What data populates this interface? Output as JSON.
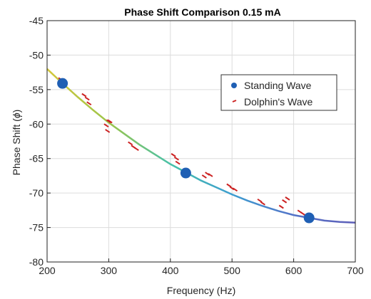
{
  "chart_data": {
    "type": "scatter",
    "title": "Phase Shift Comparison 0.15 mA",
    "xlabel": "Frequency (Hz)",
    "ylabel": "Phase Shift (",
    "ylabel_symbol": "ϕ",
    "ylabel_close": ")",
    "xlim": [
      200,
      700
    ],
    "ylim": [
      -80,
      -45
    ],
    "xticks": [
      200,
      300,
      400,
      500,
      600,
      700
    ],
    "yticks": [
      -45,
      -50,
      -55,
      -60,
      -65,
      -70,
      -75,
      -80
    ],
    "xtick_labels": [
      "200",
      "300",
      "400",
      "500",
      "600",
      "700"
    ],
    "ytick_labels": [
      "-45",
      "-50",
      "-55",
      "-60",
      "-65",
      "-70",
      "-75",
      "-80"
    ],
    "grid": true,
    "legend_position": "top-right",
    "series": [
      {
        "name": "Standing Wave",
        "marker": "circle",
        "color": "#1f5fb4",
        "x": [
          225,
          425,
          625
        ],
        "y": [
          -54.1,
          -67.1,
          -73.6
        ]
      },
      {
        "name": "Dolphin's Wave",
        "marker": "dash",
        "color": "#cc2222",
        "x": [
          222,
          226,
          260,
          265,
          268,
          296,
          298,
          300,
          302,
          335,
          340,
          345,
          405,
          410,
          412,
          455,
          460,
          465,
          495,
          500,
          505,
          545,
          550,
          580,
          585,
          590,
          610,
          615,
          620,
          625
        ],
        "y": [
          -53.5,
          -54.5,
          -55.8,
          -56.3,
          -57.0,
          -60.2,
          -61.0,
          -59.6,
          -59.6,
          -62.8,
          -63.3,
          -63.6,
          -64.5,
          -65.0,
          -65.6,
          -67.6,
          -67.2,
          -67.4,
          -68.9,
          -69.3,
          -69.5,
          -71.1,
          -71.5,
          -72.0,
          -71.2,
          -70.8,
          -72.7,
          -73.0,
          -73.3,
          -73.5
        ]
      }
    ],
    "fit_curve": {
      "x": [
        200,
        225,
        250,
        275,
        300,
        325,
        350,
        375,
        400,
        425,
        450,
        475,
        500,
        525,
        550,
        575,
        600,
        625,
        650,
        675,
        700
      ],
      "y": [
        -52.0,
        -54.1,
        -56.1,
        -58.0,
        -59.8,
        -61.4,
        -63.0,
        -64.4,
        -65.8,
        -67.0,
        -68.2,
        -69.2,
        -70.2,
        -71.1,
        -71.9,
        -72.6,
        -73.2,
        -73.6,
        -74.0,
        -74.2,
        -74.3
      ],
      "colors": [
        "#d4c73a",
        "#9cc54a",
        "#48c1a8",
        "#3c9dd0",
        "#5473c8",
        "#5d5eb8"
      ]
    }
  }
}
